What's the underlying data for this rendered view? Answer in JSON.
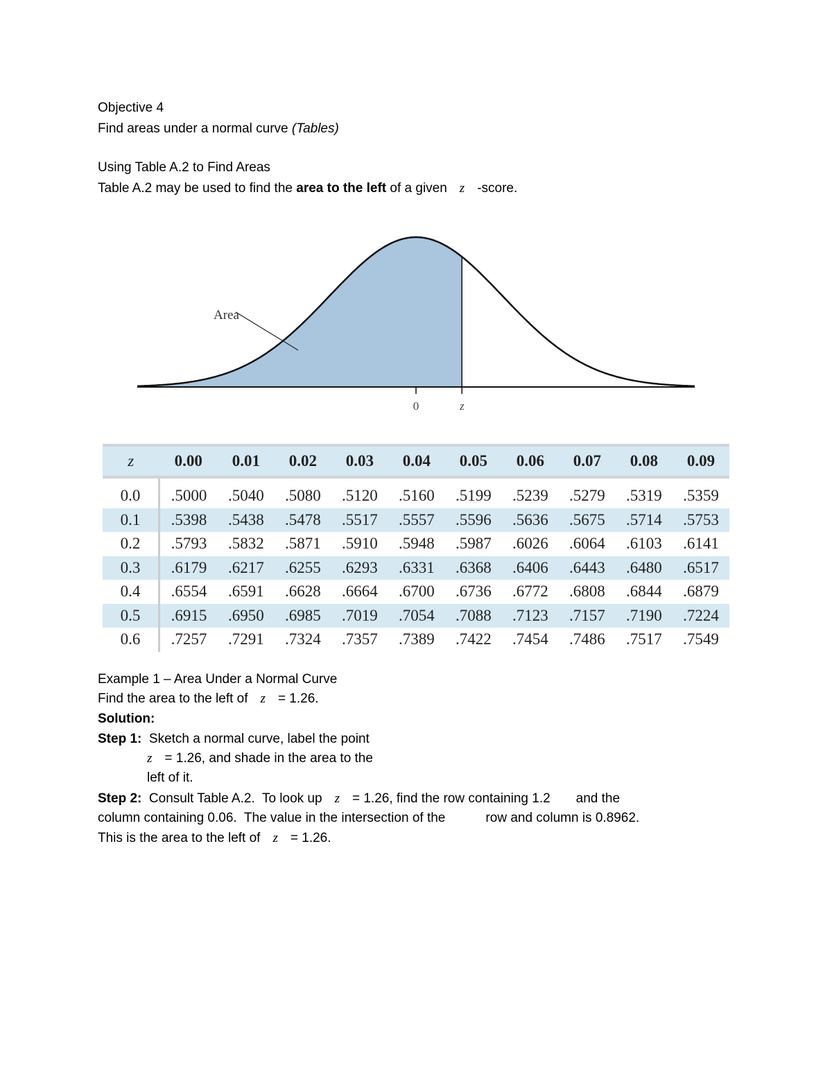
{
  "heading": {
    "objective": "Objective 4",
    "subtitle_plain": "Find areas under a normal curve ",
    "subtitle_italic": "(Tables)"
  },
  "section": {
    "title": "Using Table A.2 to Find Areas",
    "text_a": "Table A.2 may be used to find the ",
    "text_bold": "area to the left",
    "text_b": " of a given",
    "z": "z",
    "text_c": "-score."
  },
  "figure": {
    "area_label": "Area",
    "tick_zero": "0",
    "tick_z": "z",
    "fill_color": "#a9c6de",
    "shaded_until_z": 0.53
  },
  "table": {
    "header_z": "z",
    "columns": [
      "0.00",
      "0.01",
      "0.02",
      "0.03",
      "0.04",
      "0.05",
      "0.06",
      "0.07",
      "0.08",
      "0.09"
    ],
    "rows": [
      {
        "z": "0.0",
        "values": [
          ".5000",
          ".5040",
          ".5080",
          ".5120",
          ".5160",
          ".5199",
          ".5239",
          ".5279",
          ".5319",
          ".5359"
        ]
      },
      {
        "z": "0.1",
        "values": [
          ".5398",
          ".5438",
          ".5478",
          ".5517",
          ".5557",
          ".5596",
          ".5636",
          ".5675",
          ".5714",
          ".5753"
        ]
      },
      {
        "z": "0.2",
        "values": [
          ".5793",
          ".5832",
          ".5871",
          ".5910",
          ".5948",
          ".5987",
          ".6026",
          ".6064",
          ".6103",
          ".6141"
        ]
      },
      {
        "z": "0.3",
        "values": [
          ".6179",
          ".6217",
          ".6255",
          ".6293",
          ".6331",
          ".6368",
          ".6406",
          ".6443",
          ".6480",
          ".6517"
        ]
      },
      {
        "z": "0.4",
        "values": [
          ".6554",
          ".6591",
          ".6628",
          ".6664",
          ".6700",
          ".6736",
          ".6772",
          ".6808",
          ".6844",
          ".6879"
        ]
      },
      {
        "z": "0.5",
        "values": [
          ".6915",
          ".6950",
          ".6985",
          ".7019",
          ".7054",
          ".7088",
          ".7123",
          ".7157",
          ".7190",
          ".7224"
        ]
      },
      {
        "z": "0.6",
        "values": [
          ".7257",
          ".7291",
          ".7324",
          ".7357",
          ".7389",
          ".7422",
          ".7454",
          ".7486",
          ".7517",
          ".7549"
        ]
      }
    ],
    "stripe_color": "#d6e8f2"
  },
  "example": {
    "title": "Example 1 – Area Under a Normal Curve",
    "prompt_a": "Find the area to the left of",
    "z": "z",
    "prompt_b": "= 1.26.",
    "solution": "Solution:",
    "step1_label": "Step 1:",
    "step1_a": "  Sketch a normal curve, label the point",
    "step1_b": "= 1.26, and shade in the area to the",
    "step1_c": "left of it.",
    "step2_label": "Step 2:",
    "step2_a": "  Consult Table A.2.  To look up",
    "step2_b": "= 1.26, find the row containing 1.2       and the",
    "step2_c": "column containing 0.06.  The value in the intersection of the           row and column is 0.8962.",
    "step2_d": "This is the area to the left of",
    "step2_e": "= 1.26."
  }
}
